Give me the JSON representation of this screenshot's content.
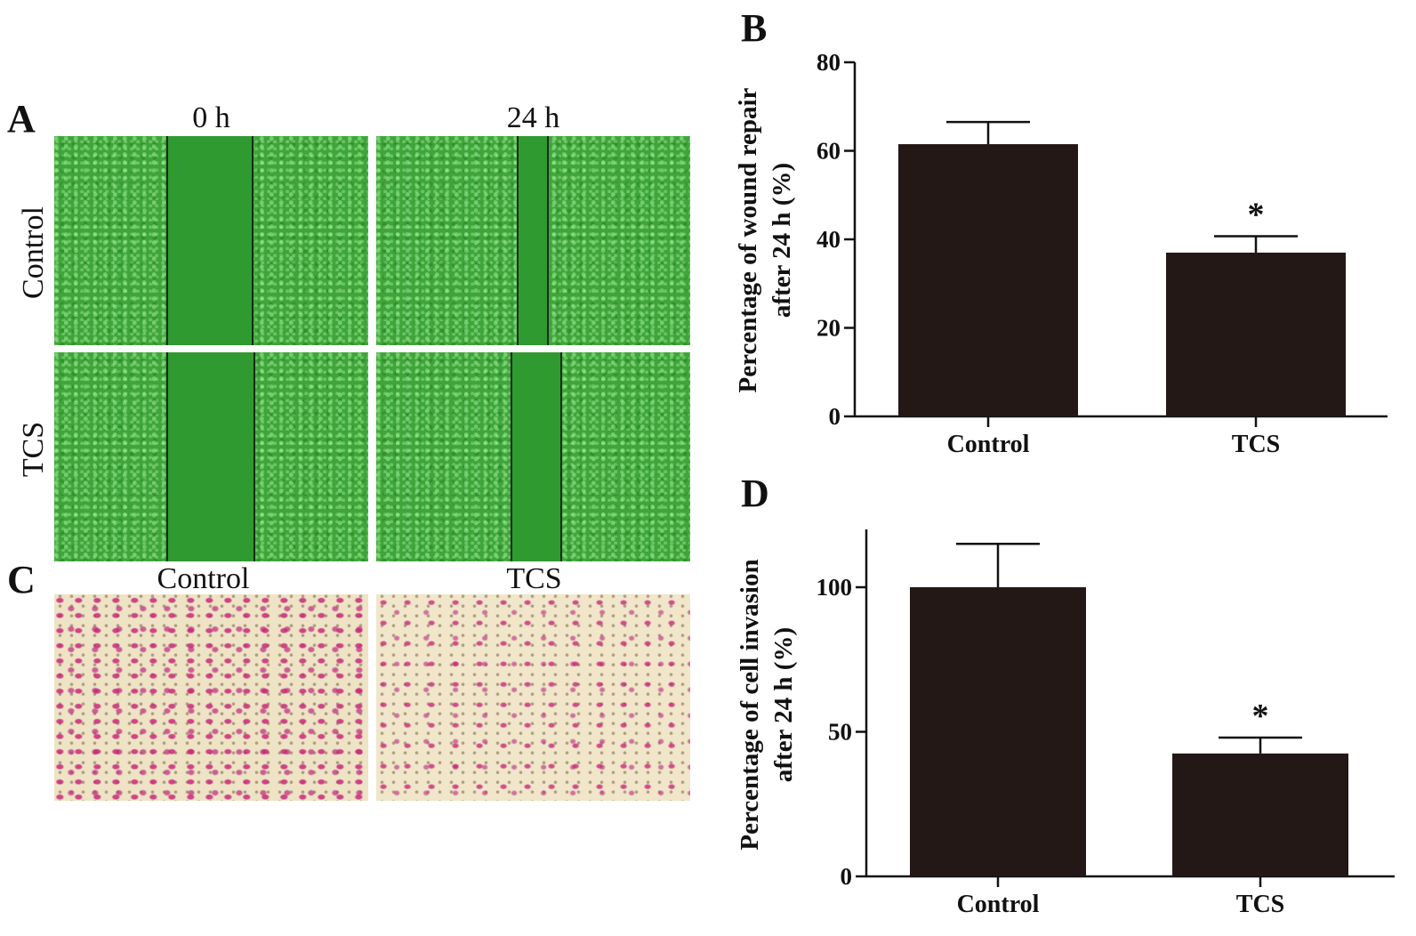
{
  "panels": {
    "A": {
      "letter": "A",
      "columns": [
        "0 h",
        "24 h"
      ],
      "rows": [
        "Control",
        "TCS"
      ]
    },
    "B": {
      "letter": "B"
    },
    "C": {
      "letter": "C",
      "columns": [
        "Control",
        "TCS"
      ]
    },
    "D": {
      "letter": "D"
    }
  },
  "colors": {
    "bar": "#231816",
    "scratch_green": "#3fa53a",
    "stain_magenta": "#c8287a"
  },
  "chart_data": [
    {
      "id": "B",
      "type": "bar",
      "categories": [
        "Control",
        "TCS"
      ],
      "values": [
        61.5,
        37
      ],
      "errors": [
        5,
        3.7
      ],
      "annotations": [
        "",
        "*"
      ],
      "ylabel_lines": [
        "Percentage of wound repair",
        "after 24 h (%)"
      ],
      "yticks": [
        0,
        20,
        40,
        60,
        80
      ],
      "ylim": [
        0,
        80
      ],
      "grid": false
    },
    {
      "id": "D",
      "type": "bar",
      "categories": [
        "Control",
        "TCS"
      ],
      "values": [
        100,
        42.5
      ],
      "errors": [
        15,
        5.5
      ],
      "annotations": [
        "",
        "*"
      ],
      "ylabel_lines": [
        "Percentage of cell invasion",
        "after 24 h (%)"
      ],
      "yticks": [
        0,
        50,
        100
      ],
      "ylim": [
        0,
        120
      ],
      "grid": false
    }
  ]
}
